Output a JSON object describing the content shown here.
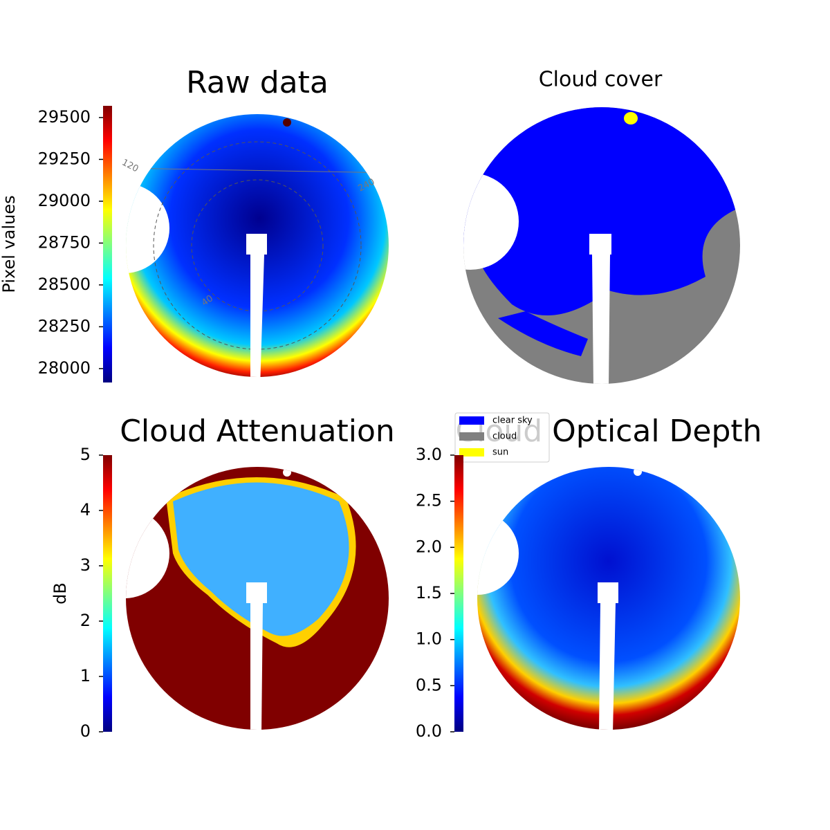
{
  "chart_data": [
    {
      "type": "image",
      "title": "Raw data",
      "colorbar_label": "Pixel values",
      "colormap": "jet",
      "ylim": [
        27917,
        29570
      ],
      "yticks": [
        28000,
        28250,
        28500,
        28750,
        29000,
        29250,
        29500
      ],
      "annotations": [
        "120",
        "240",
        "40"
      ]
    },
    {
      "type": "image",
      "title": "Cloud cover",
      "legend": [
        {
          "name": "clear sky",
          "color": "#0000ff"
        },
        {
          "name": "cloud",
          "color": "#808080"
        },
        {
          "name": "sun",
          "color": "#ffff00"
        }
      ]
    },
    {
      "type": "image",
      "title": "Cloud Attenuation",
      "colorbar_label": "dB",
      "colormap": "jet",
      "ylim": [
        0,
        5
      ],
      "yticks": [
        0,
        1,
        2,
        3,
        4,
        5
      ]
    },
    {
      "type": "image",
      "title": "Cloud Optical Depth",
      "colormap": "jet",
      "ylim": [
        0,
        3
      ],
      "yticks": [
        {
          "value": 0,
          "label": "0.0"
        },
        0.5,
        {
          "value": 1,
          "label": "1.0"
        },
        1.5,
        {
          "value": 2,
          "label": "2.0"
        },
        2.5,
        {
          "value": 3,
          "label": "3.0"
        }
      ]
    }
  ]
}
